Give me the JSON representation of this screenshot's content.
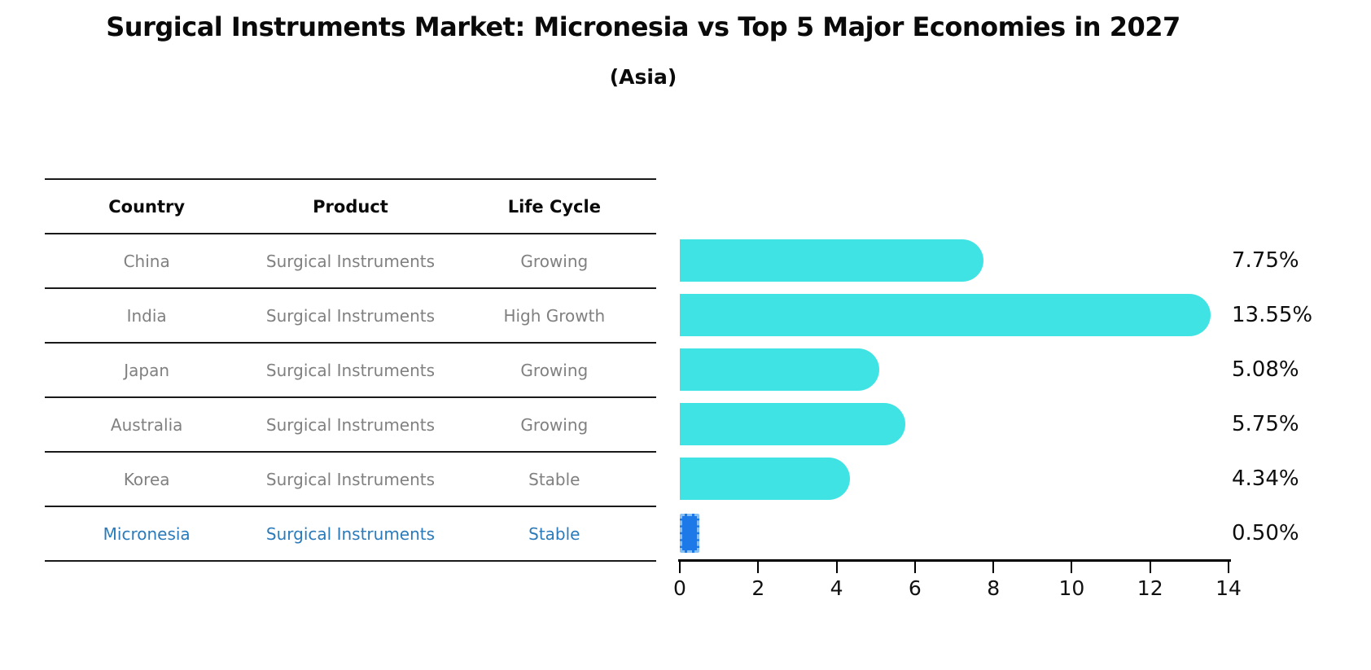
{
  "title": "Surgical Instruments Market: Micronesia vs Top 5 Major Economies in 2027",
  "subtitle": "(Asia)",
  "table": {
    "headers": [
      "Country",
      "Product",
      "Life Cycle"
    ],
    "rows": [
      {
        "country": "China",
        "product": "Surgical Instruments",
        "life_cycle": "Growing",
        "highlight": false
      },
      {
        "country": "India",
        "product": "Surgical Instruments",
        "life_cycle": "High Growth",
        "highlight": false
      },
      {
        "country": "Japan",
        "product": "Surgical Instruments",
        "life_cycle": "Growing",
        "highlight": false
      },
      {
        "country": "Australia",
        "product": "Surgical Instruments",
        "life_cycle": "Growing",
        "highlight": false
      },
      {
        "country": "Korea",
        "product": "Surgical Instruments",
        "life_cycle": "Stable",
        "highlight": false
      },
      {
        "country": "Micronesia",
        "product": "Surgical Instruments",
        "life_cycle": "Stable",
        "highlight": true
      }
    ]
  },
  "chart_data": {
    "type": "bar",
    "orientation": "horizontal",
    "title": "Surgical Instruments Market: Micronesia vs Top 5 Major Economies in 2027 (Asia)",
    "categories": [
      "China",
      "India",
      "Japan",
      "Australia",
      "Korea",
      "Micronesia"
    ],
    "values": [
      7.75,
      13.55,
      5.08,
      5.75,
      4.34,
      0.5
    ],
    "value_labels": [
      "7.75%",
      "13.55%",
      "5.08%",
      "5.75%",
      "4.34%",
      "0.50%"
    ],
    "x_ticks": [
      0,
      2,
      4,
      6,
      8,
      10,
      12,
      14
    ],
    "xlim": [
      0,
      14
    ],
    "xlabel": "",
    "ylabel": "",
    "grid": false,
    "legend": false,
    "highlight_index": 5
  },
  "colors": {
    "bar_primary": "#40e3e3",
    "bar_highlight": "#1e79e8",
    "bar_highlight_dash": "#86c0f5",
    "highlight_text": "#2b7bbb",
    "text_primary": "#0a0a0a",
    "text_muted": "#808080",
    "axis": "#000000"
  }
}
